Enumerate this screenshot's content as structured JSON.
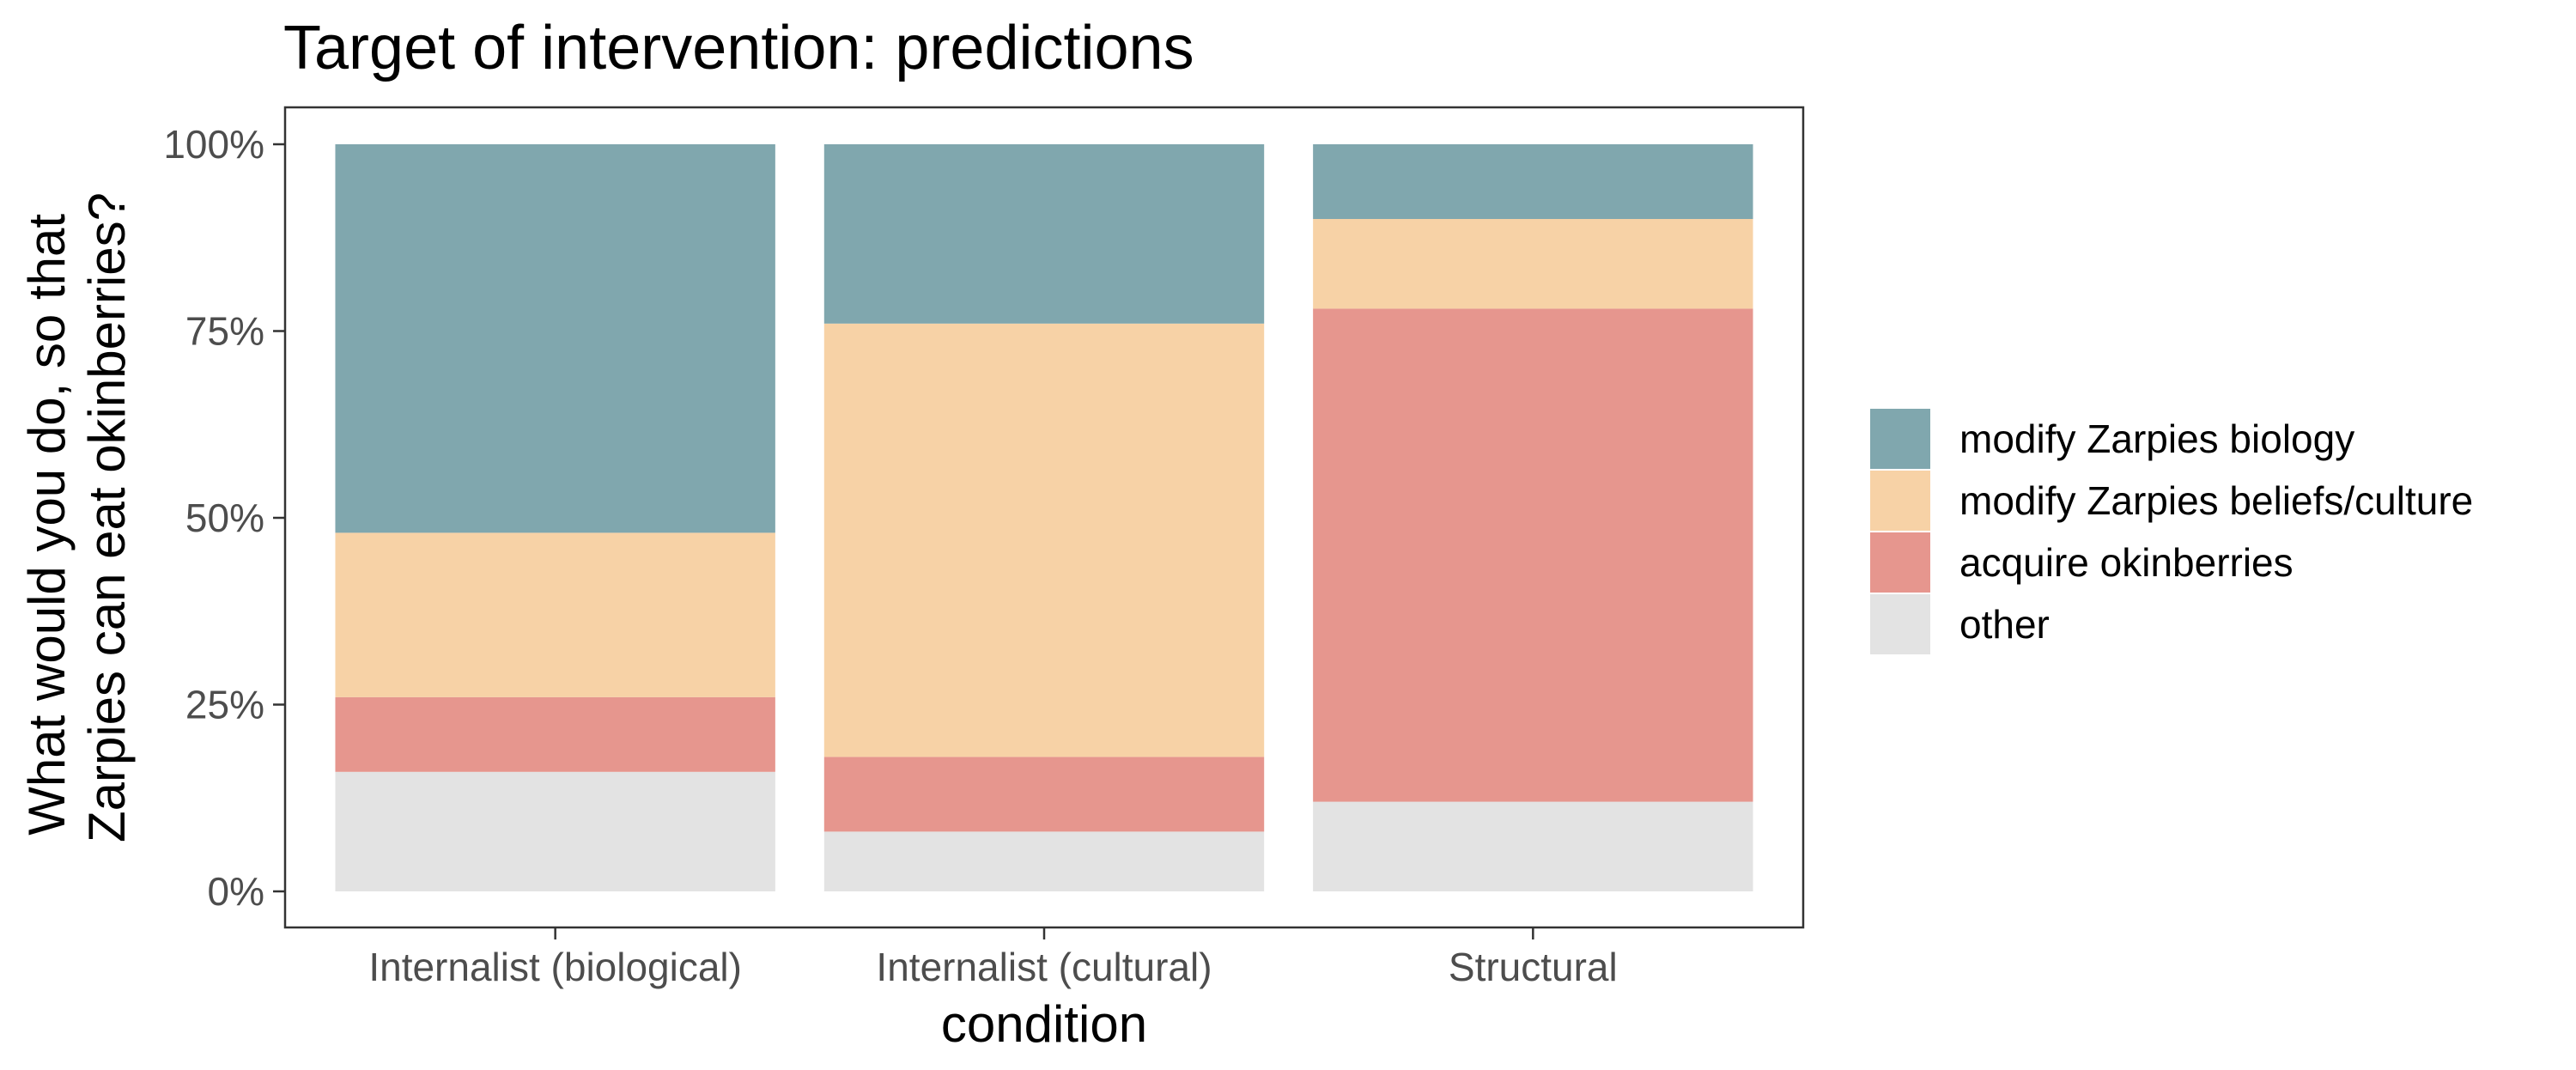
{
  "chart_data": {
    "type": "bar",
    "stacked": true,
    "title": "Target of intervention: predictions",
    "xlabel": "condition",
    "ylabel": [
      "What would you do, so that",
      "Zarpies can eat okinberries?"
    ],
    "ylim": [
      0,
      1
    ],
    "y_ticks": [
      0,
      0.25,
      0.5,
      0.75,
      1
    ],
    "y_tick_labels": [
      "0%",
      "25%",
      "50%",
      "75%",
      "100%"
    ],
    "grid": false,
    "legend_position": "right",
    "categories": [
      "Internalist (biological)",
      "Internalist (cultural)",
      "Structural"
    ],
    "series": [
      {
        "name": "other",
        "color": "#e3e3e3",
        "values": [
          0.16,
          0.08,
          0.12
        ]
      },
      {
        "name": "acquire okinberries",
        "color": "#e6968e",
        "values": [
          0.1,
          0.1,
          0.66
        ]
      },
      {
        "name": "modify Zarpies beliefs/culture",
        "color": "#f7d2a6",
        "values": [
          0.22,
          0.58,
          0.12
        ]
      },
      {
        "name": "modify Zarpies biology",
        "color": "#80a7ae",
        "values": [
          0.52,
          0.24,
          0.1
        ]
      }
    ],
    "legend_order": [
      "modify Zarpies biology",
      "modify Zarpies beliefs/culture",
      "acquire okinberries",
      "other"
    ]
  }
}
